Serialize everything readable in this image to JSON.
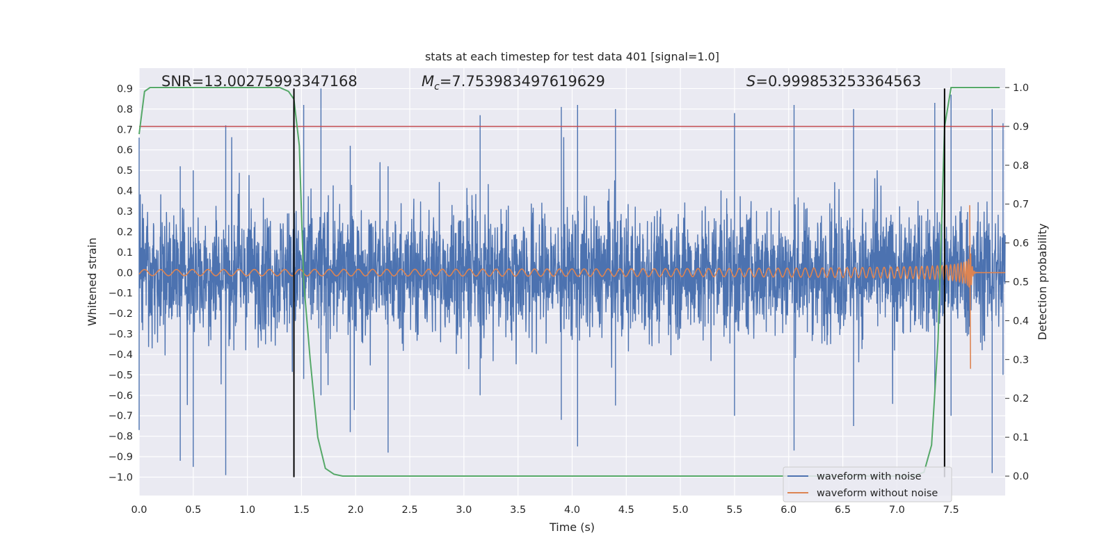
{
  "chart_data": {
    "type": "line",
    "title": "stats at each timestep for test data 401 [signal=1.0]",
    "xlabel": "Time (s)",
    "ylabel": "Whitened strain",
    "ylabel_right": "Detection probability",
    "xlim": [
      0.0,
      8.0
    ],
    "ylim": [
      -1.09,
      1.0
    ],
    "ylim_right": [
      -0.05,
      1.05
    ],
    "x_ticks": [
      "0.0",
      "0.5",
      "1.0",
      "1.5",
      "2.0",
      "2.5",
      "3.0",
      "3.5",
      "4.0",
      "4.5",
      "5.0",
      "5.5",
      "6.0",
      "6.5",
      "7.0",
      "7.5"
    ],
    "y_ticks": [
      "0.9",
      "0.8",
      "0.7",
      "0.6",
      "0.5",
      "0.4",
      "0.3",
      "0.2",
      "0.1",
      "0.0",
      "-0.1",
      "-0.2",
      "-0.3",
      "-0.4",
      "-0.5",
      "-0.6",
      "-0.7",
      "-0.8",
      "-0.9",
      "-1.0"
    ],
    "y_ticks_right": [
      "1.0",
      "0.9",
      "0.8",
      "0.7",
      "0.6",
      "0.5",
      "0.4",
      "0.3",
      "0.2",
      "0.1",
      "0.0"
    ],
    "annotations": {
      "snr": "SNR=13.00275993347168",
      "mc_symbol": "M",
      "mc_sub": "c",
      "mc_value": "=7.753983497619629",
      "s_symbol": "S",
      "s_value": "=0.999853253364563"
    },
    "threshold": {
      "axis": "right",
      "value": 0.9,
      "color": "#c44e52"
    },
    "vertical_lines": [
      1.43,
      7.44
    ],
    "vertical_lines_ylim": [
      -1.0,
      0.9
    ],
    "series": [
      {
        "name": "waveform with noise",
        "axis": "left",
        "color": "#4c72b0",
        "description": "noisy whitened strain, roughly uniform amplitude, peaks ~0.9 / -1.0",
        "peaks": [
          [
            0.0,
            0.66,
            -0.77
          ],
          [
            0.38,
            0.52,
            -0.92
          ],
          [
            0.5,
            0.5,
            -0.95
          ],
          [
            0.8,
            0.72,
            -0.99
          ],
          [
            1.43,
            0.84,
            -0.5
          ],
          [
            1.52,
            0.82,
            -0.52
          ],
          [
            1.68,
            0.9,
            -0.6
          ],
          [
            1.95,
            0.62,
            -0.78
          ],
          [
            2.3,
            0.52,
            -0.88
          ],
          [
            3.15,
            0.77,
            -0.6
          ],
          [
            3.9,
            0.81,
            -0.72
          ],
          [
            4.05,
            0.82,
            -0.85
          ],
          [
            4.4,
            0.8,
            -0.65
          ],
          [
            5.5,
            0.78,
            -0.7
          ],
          [
            6.05,
            0.82,
            -0.87
          ],
          [
            6.6,
            0.8,
            -0.75
          ],
          [
            7.35,
            0.83,
            -0.6
          ],
          [
            7.5,
            0.87,
            -0.7
          ],
          [
            7.88,
            0.8,
            -0.98
          ],
          [
            7.98,
            0.73,
            -0.5
          ]
        ]
      },
      {
        "name": "waveform without noise",
        "axis": "left",
        "color": "#dd8452",
        "description": "chirp: amplitude grows from ~0.015 to ~0.33 at merger t~7.68 s, then ringdown",
        "merger_time": 7.68,
        "merger_peak": 0.33,
        "merger_trough": -0.47
      },
      {
        "name": "detection probability",
        "axis": "right",
        "color": "#55a868",
        "x": [
          0.0,
          0.05,
          0.1,
          0.2,
          1.3,
          1.38,
          1.43,
          1.48,
          1.52,
          1.58,
          1.65,
          1.72,
          1.8,
          1.88,
          2.0,
          4.0,
          7.15,
          7.25,
          7.32,
          7.38,
          7.44,
          7.5,
          7.95
        ],
        "y": [
          0.88,
          0.99,
          1.0,
          1.0,
          1.0,
          0.99,
          0.97,
          0.85,
          0.5,
          0.3,
          0.1,
          0.02,
          0.005,
          0.0,
          0.0,
          0.0,
          0.0,
          0.01,
          0.08,
          0.35,
          0.9,
          1.0,
          1.0
        ]
      }
    ],
    "legend": {
      "placement": "bottom-right",
      "entries": [
        {
          "label": "waveform with noise",
          "color": "#4c72b0"
        },
        {
          "label": "waveform without noise",
          "color": "#dd8452"
        }
      ]
    },
    "colors": {
      "background": "#eaeaf2",
      "grid": "#ffffff",
      "vline": "#000000"
    }
  }
}
